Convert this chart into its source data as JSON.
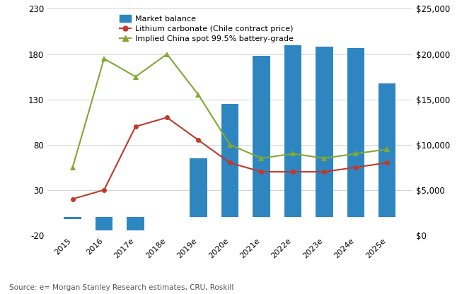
{
  "categories": [
    "2015",
    "2016",
    "2017e",
    "2018e",
    "2019e",
    "2020e",
    "2021e",
    "2022e",
    "2023e",
    "2024e",
    "2025e"
  ],
  "market_balance": [
    -2,
    -15,
    -15,
    0,
    65,
    125,
    178,
    190,
    188,
    187,
    148
  ],
  "lithium_carbonate": [
    4000,
    5000,
    12000,
    13000,
    10500,
    8000,
    7000,
    7000,
    7000,
    7500,
    8000
  ],
  "implied_china_spot": [
    7500,
    19500,
    17500,
    20000,
    15500,
    10000,
    8500,
    9000,
    8500,
    9000,
    9500
  ],
  "bar_color": "#2e86c1",
  "line1_color": "#c0392b",
  "line2_color": "#82a832",
  "left_ylim": [
    -20,
    230
  ],
  "left_yticks": [
    -20,
    30,
    80,
    130,
    180,
    230
  ],
  "right_ylim": [
    0,
    25000
  ],
  "right_yticks": [
    0,
    5000,
    10000,
    15000,
    20000,
    25000
  ],
  "legend_market": "Market balance",
  "legend_line1": "Lithium carbonate (Chile contract price)",
  "legend_line2": "Implied China spot 99.5% battery-grade",
  "source_text": "Source: e= Morgan Stanley Research estimates, CRU, Roskill",
  "bg_color": "#ffffff",
  "grid_color": "#cccccc",
  "fig_width": 6.7,
  "fig_height": 4.16,
  "dpi": 100
}
